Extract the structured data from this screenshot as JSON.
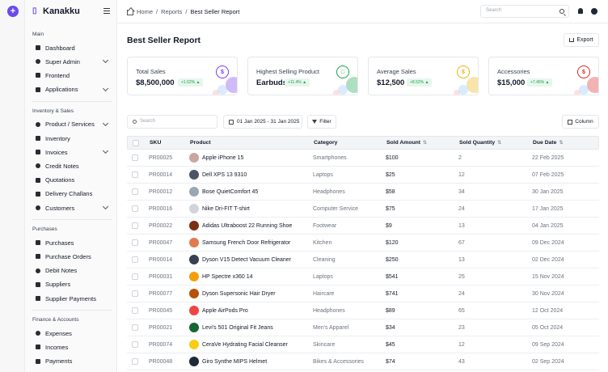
{
  "brand": {
    "name": "Kanakku"
  },
  "colors": {
    "accent": "#6d4bea",
    "positive": "#16a34a"
  },
  "sidebar": {
    "sections": [
      {
        "title": "Main",
        "items": [
          {
            "label": "Dashboard",
            "expandable": false
          },
          {
            "label": "Super Admin",
            "expandable": true
          },
          {
            "label": "Frontend",
            "expandable": false
          },
          {
            "label": "Applications",
            "expandable": true
          }
        ]
      },
      {
        "title": "Inventory & Sales",
        "items": [
          {
            "label": "Product / Services",
            "expandable": true
          },
          {
            "label": "Inventory",
            "expandable": false
          },
          {
            "label": "Invoices",
            "expandable": true
          },
          {
            "label": "Credit Notes",
            "expandable": false
          },
          {
            "label": "Quotations",
            "expandable": false
          },
          {
            "label": "Delivery Challans",
            "expandable": false
          },
          {
            "label": "Customers",
            "expandable": true
          }
        ]
      },
      {
        "title": "Purchases",
        "items": [
          {
            "label": "Purchases",
            "expandable": false
          },
          {
            "label": "Purchase Orders",
            "expandable": false
          },
          {
            "label": "Debit Notes",
            "expandable": false
          },
          {
            "label": "Suppliers",
            "expandable": false
          },
          {
            "label": "Supplier Payments",
            "expandable": false
          }
        ]
      },
      {
        "title": "Finance & Accounts",
        "items": [
          {
            "label": "Expenses",
            "expandable": false
          },
          {
            "label": "Incomes",
            "expandable": false
          },
          {
            "label": "Payments",
            "expandable": false
          }
        ]
      }
    ]
  },
  "topbar": {
    "breadcrumb": [
      "Home",
      "Reports",
      "Best Seller Report"
    ],
    "search_placeholder": "Search"
  },
  "page": {
    "title": "Best Seller Report",
    "export_label": "Export"
  },
  "cards": [
    {
      "title": "Total Sales",
      "value": "$8,500,000",
      "change": "+1.62%",
      "icon": "dollar-icon",
      "color": "#7c3aed"
    },
    {
      "title": "Highest Selling Product",
      "value": "Earbuds",
      "change": "+11.4%",
      "icon": "bag-icon",
      "color": "#16a34a"
    },
    {
      "title": "Average Sales",
      "value": "$12,500",
      "change": "+8.52%",
      "icon": "coin-icon",
      "color": "#eab308"
    },
    {
      "title": "Accessories",
      "value": "$15,000",
      "change": "+7.45%",
      "icon": "dollar-circle-icon",
      "color": "#dc2626"
    }
  ],
  "toolbar": {
    "search_placeholder": "Search",
    "date_range": "01 Jan 2025 - 31 Jan 2025",
    "filter_label": "Filter",
    "column_label": "Column"
  },
  "table": {
    "headers": {
      "sku": "SKU",
      "product": "Product",
      "category": "Category",
      "amount": "Sold Amount",
      "quantity": "Sold Quantity",
      "due": "Due Date"
    },
    "rows": [
      {
        "sku": "PR00025",
        "product": "Apple iPhone 15",
        "category": "Smartphones",
        "amount": "$100",
        "quantity": "2",
        "due": "22 Feb 2025",
        "thumb": "#c9a7a0"
      },
      {
        "sku": "PR00014",
        "product": "Dell XPS 13 9310",
        "category": "Laptops",
        "amount": "$25",
        "quantity": "12",
        "due": "07 Feb 2025",
        "thumb": "#4b5563"
      },
      {
        "sku": "PR00012",
        "product": "Bose QuietComfort 45",
        "category": "Headphones",
        "amount": "$58",
        "quantity": "34",
        "due": "30 Jan 2025",
        "thumb": "#9aa6b2"
      },
      {
        "sku": "PR00016",
        "product": "Nike Dri-FIT T-shirt",
        "category": "Computer Service",
        "amount": "$75",
        "quantity": "24",
        "due": "17 Jan 2025",
        "thumb": "#d1d5db"
      },
      {
        "sku": "PR00022",
        "product": "Adidas Ultraboost 22 Running Shoe",
        "category": "Footwear",
        "amount": "$9",
        "quantity": "13",
        "due": "04 Jan 2025",
        "thumb": "#7c2d12"
      },
      {
        "sku": "PR00047",
        "product": "Samsung French Door Refrigerator",
        "category": "Kitchen",
        "amount": "$120",
        "quantity": "67",
        "due": "09 Dec 2024",
        "thumb": "#e07a4f"
      },
      {
        "sku": "PR00014",
        "product": "Dyson V15 Detect  Vacuum Cleaner",
        "category": "Cleaning",
        "amount": "$250",
        "quantity": "13",
        "due": "02 Dec 2024",
        "thumb": "#374151"
      },
      {
        "sku": "PR00031",
        "product": "HP Spectre x360 14",
        "category": "Laptops",
        "amount": "$541",
        "quantity": "25",
        "due": "15 Nov 2024",
        "thumb": "#f59e0b"
      },
      {
        "sku": "PR00077",
        "product": "Dyson Supersonic Hair Dryer",
        "category": "Haircare",
        "amount": "$741",
        "quantity": "24",
        "due": "30 Nov 2024",
        "thumb": "#b45309"
      },
      {
        "sku": "PR00045",
        "product": "Apple AirPods Pro",
        "category": "Headphones",
        "amount": "$89",
        "quantity": "65",
        "due": "12 Oct 2024",
        "thumb": "#ef4444"
      },
      {
        "sku": "PR00021",
        "product": "Levi's 501 Original Fit Jeans",
        "category": "Men's Apparel",
        "amount": "$34",
        "quantity": "23",
        "due": "05 Oct 2024",
        "thumb": "#166534"
      },
      {
        "sku": "PR00074",
        "product": "CeraVe Hydrating Facial Cleanser",
        "category": "Skincare",
        "amount": "$45",
        "quantity": "12",
        "due": "09 Sep 2024",
        "thumb": "#facc15"
      },
      {
        "sku": "PR00048",
        "product": "Giro Synthe MIPS Helmet",
        "category": "Bikes & Accessories",
        "amount": "$74",
        "quantity": "43",
        "due": "02 Sep 2024",
        "thumb": "#1f2937"
      }
    ]
  }
}
